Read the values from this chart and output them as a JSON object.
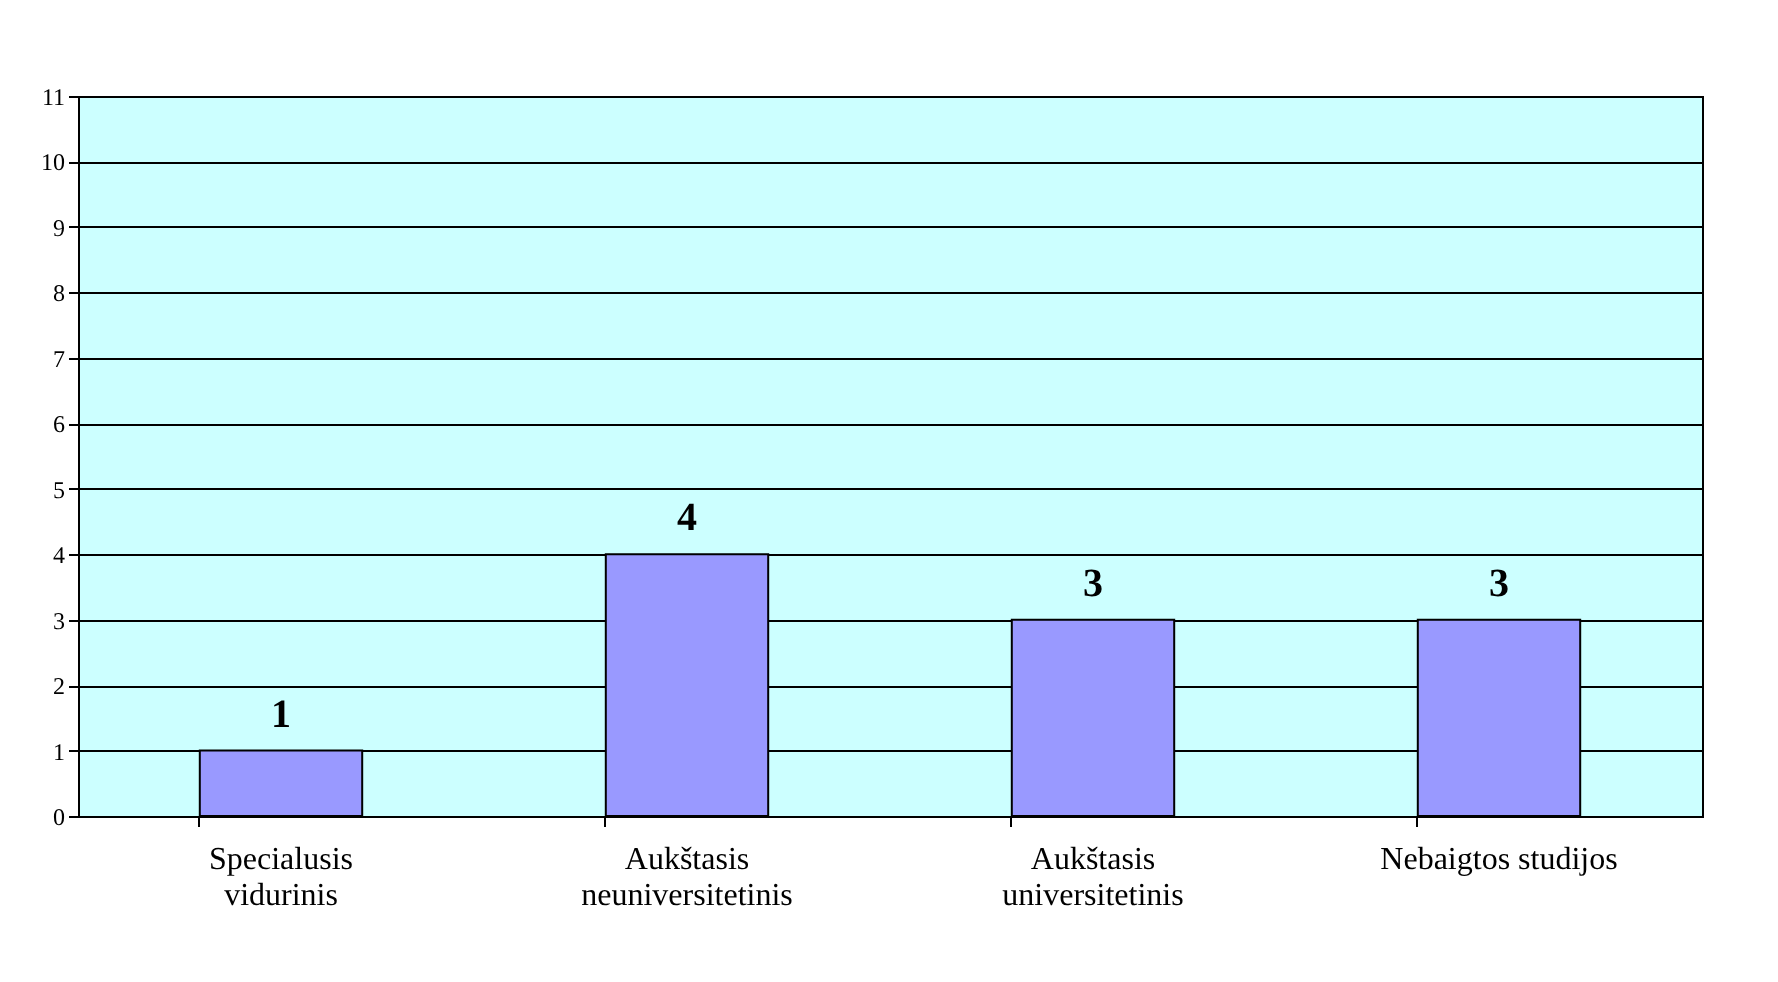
{
  "chart_data": {
    "type": "bar",
    "categories": [
      "Specialusis\nvidurinis",
      "Aukštasis\nneuniversitetinis",
      "Aukštasis\nuniversitetinis",
      "Nebaigtos studijos"
    ],
    "values": [
      1,
      4,
      3,
      3
    ],
    "color": "#9999ff",
    "ylim": [
      0,
      11
    ],
    "yticks": [
      0,
      1,
      2,
      3,
      4,
      5,
      6,
      7,
      8,
      9,
      10,
      11
    ],
    "grid": "y",
    "data_labels": true
  }
}
